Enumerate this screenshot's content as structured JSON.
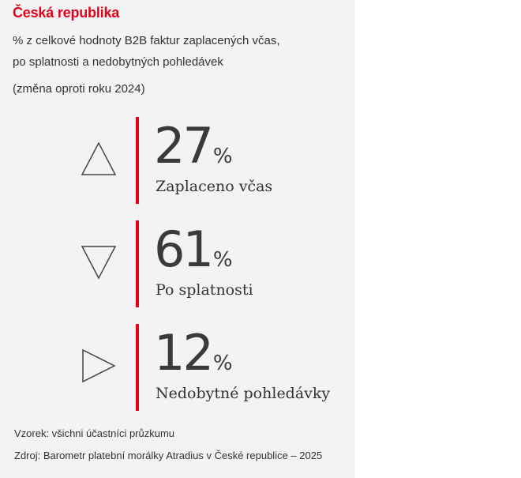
{
  "header": {
    "title": "Česká republika",
    "subtitle_line1": "% z celkové hodnoty B2B faktur zaplacených včas,",
    "subtitle_line2": "po splatnosti a nedobytných pohledávek",
    "change_note": "(změna oproti roku 2024)"
  },
  "chart_data": {
    "type": "table",
    "title": "Česká republika",
    "subtitle": "% z celkové hodnoty B2B faktur zaplacených včas, po splatnosti a nedobytných pohledávek",
    "unit": "%",
    "categories": [
      "Zaplaceno včas",
      "Po splatnosti",
      "Nedobytné pohledávky"
    ],
    "values": [
      27,
      61,
      12
    ],
    "change_vs_2024": [
      "up",
      "down",
      "flat"
    ],
    "items": [
      {
        "label": "Zaplaceno včas",
        "value": "27",
        "unit": "%",
        "change_icon": "triangle-up-icon"
      },
      {
        "label": "Po splatnosti",
        "value": "61",
        "unit": "%",
        "change_icon": "triangle-down-icon"
      },
      {
        "label": "Nedobytné pohledávky",
        "value": "12",
        "unit": "%",
        "change_icon": "triangle-right-icon"
      }
    ]
  },
  "footer": {
    "sample": "Vzorek: všichni účastníci průzkumu",
    "source": "Zdroj: Barometr platební morálky Atradius v České republice – 2025"
  },
  "colors": {
    "accent": "#e2001a",
    "panel_bg": "#f3f3f3",
    "text": "#333333",
    "icon_stroke": "#444444"
  }
}
